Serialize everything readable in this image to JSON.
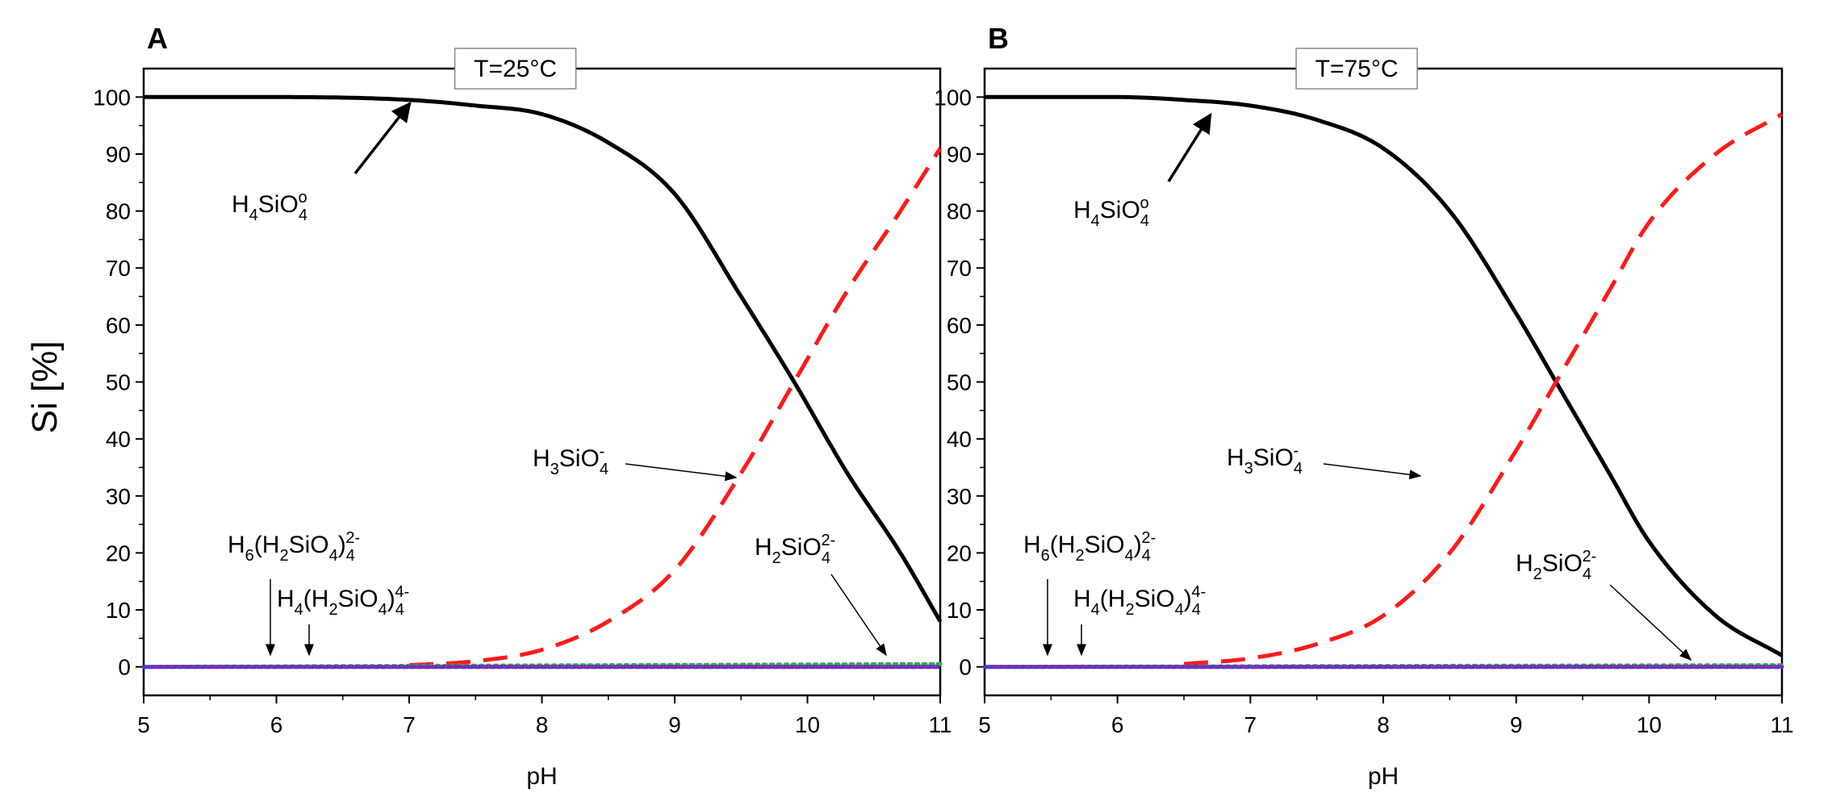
{
  "figure": {
    "ylabel": "Si [%]",
    "xlabel": "pH",
    "x_ticks": [
      "5",
      "6",
      "7",
      "8",
      "9",
      "10",
      "11"
    ],
    "y_ticks": [
      "0",
      "10",
      "20",
      "30",
      "40",
      "50",
      "60",
      "70",
      "80",
      "90",
      "100"
    ]
  },
  "species_labels": {
    "h4sio4": {
      "main": "H4SiO4",
      "parts": [
        "H",
        "4",
        "SiO",
        "4",
        "o"
      ]
    },
    "h3sio4": {
      "parts": [
        "H",
        "3",
        "SiO",
        "4",
        "-"
      ]
    },
    "h2sio4": {
      "parts": [
        "H",
        "2",
        "SiO",
        "4",
        "2-"
      ]
    },
    "h6": {
      "parts": [
        "H",
        "6",
        "(H",
        "2",
        "SiO",
        "4",
        ")",
        "4",
        "2-"
      ]
    },
    "h4": {
      "parts": [
        "H",
        "4",
        "(H",
        "2",
        "SiO",
        "4",
        ")",
        "4",
        "4-"
      ]
    }
  },
  "colors": {
    "h4sio4": "#000000",
    "h3sio4": "#ff1a1a",
    "minor_dotted": [
      "#3a3adc",
      "#7a2fb5",
      "#3aa84a"
    ]
  },
  "chart_data": [
    {
      "type": "line",
      "panel": "A",
      "annotation": "T=25°C",
      "xlabel": "pH",
      "ylabel": "Si [%]",
      "xlim": [
        5,
        11
      ],
      "ylim": [
        -5,
        105
      ],
      "series": [
        {
          "name": "H4SiO4o",
          "style": "solid",
          "x": [
            5,
            6,
            7,
            7.5,
            8,
            8.5,
            9,
            9.5,
            9.9,
            10.3,
            10.7,
            11
          ],
          "y": [
            100,
            100,
            99.5,
            98.5,
            97,
            92,
            83,
            65,
            50,
            34,
            20,
            8
          ]
        },
        {
          "name": "H3SiO4-",
          "style": "dashed",
          "x": [
            7,
            7.5,
            8,
            8.5,
            9,
            9.5,
            9.9,
            10.3,
            10.7,
            11
          ],
          "y": [
            0.3,
            1,
            3,
            8,
            17,
            34,
            50,
            66,
            80,
            91
          ]
        },
        {
          "name": "H2SiO4 2-",
          "style": "dotted",
          "x": [
            5,
            11
          ],
          "y": [
            0,
            0.5
          ]
        },
        {
          "name": "H6(H2SiO4)4 2-",
          "style": "dotted",
          "x": [
            5,
            11
          ],
          "y": [
            0,
            0
          ]
        },
        {
          "name": "H4(H2SiO4)4 4-",
          "style": "dotted",
          "x": [
            5,
            11
          ],
          "y": [
            0,
            0
          ]
        }
      ]
    },
    {
      "type": "line",
      "panel": "B",
      "annotation": "T=75°C",
      "xlabel": "pH",
      "ylabel": "Si [%]",
      "xlim": [
        5,
        11
      ],
      "ylim": [
        -5,
        105
      ],
      "series": [
        {
          "name": "H4SiO4o",
          "style": "solid",
          "x": [
            5,
            6,
            6.5,
            7,
            7.5,
            8,
            8.5,
            9,
            9.3,
            9.7,
            10,
            10.5,
            11
          ],
          "y": [
            100,
            100,
            99.5,
            98.5,
            96,
            91,
            80,
            62,
            50,
            34,
            22,
            9,
            2
          ]
        },
        {
          "name": "H3SiO4-",
          "style": "dashed",
          "x": [
            6.5,
            7,
            7.5,
            8,
            8.5,
            9,
            9.3,
            9.7,
            10,
            10.5,
            11
          ],
          "y": [
            0.5,
            1.5,
            4,
            9,
            20,
            38,
            50,
            66,
            78,
            90,
            97
          ]
        },
        {
          "name": "H2SiO4 2-",
          "style": "dotted",
          "x": [
            5,
            11
          ],
          "y": [
            0,
            0.3
          ]
        },
        {
          "name": "H6(H2SiO4)4 2-",
          "style": "dotted",
          "x": [
            5,
            11
          ],
          "y": [
            0,
            0
          ]
        },
        {
          "name": "H4(H2SiO4)4 4-",
          "style": "dotted",
          "x": [
            5,
            11
          ],
          "y": [
            0,
            0
          ]
        }
      ]
    }
  ]
}
